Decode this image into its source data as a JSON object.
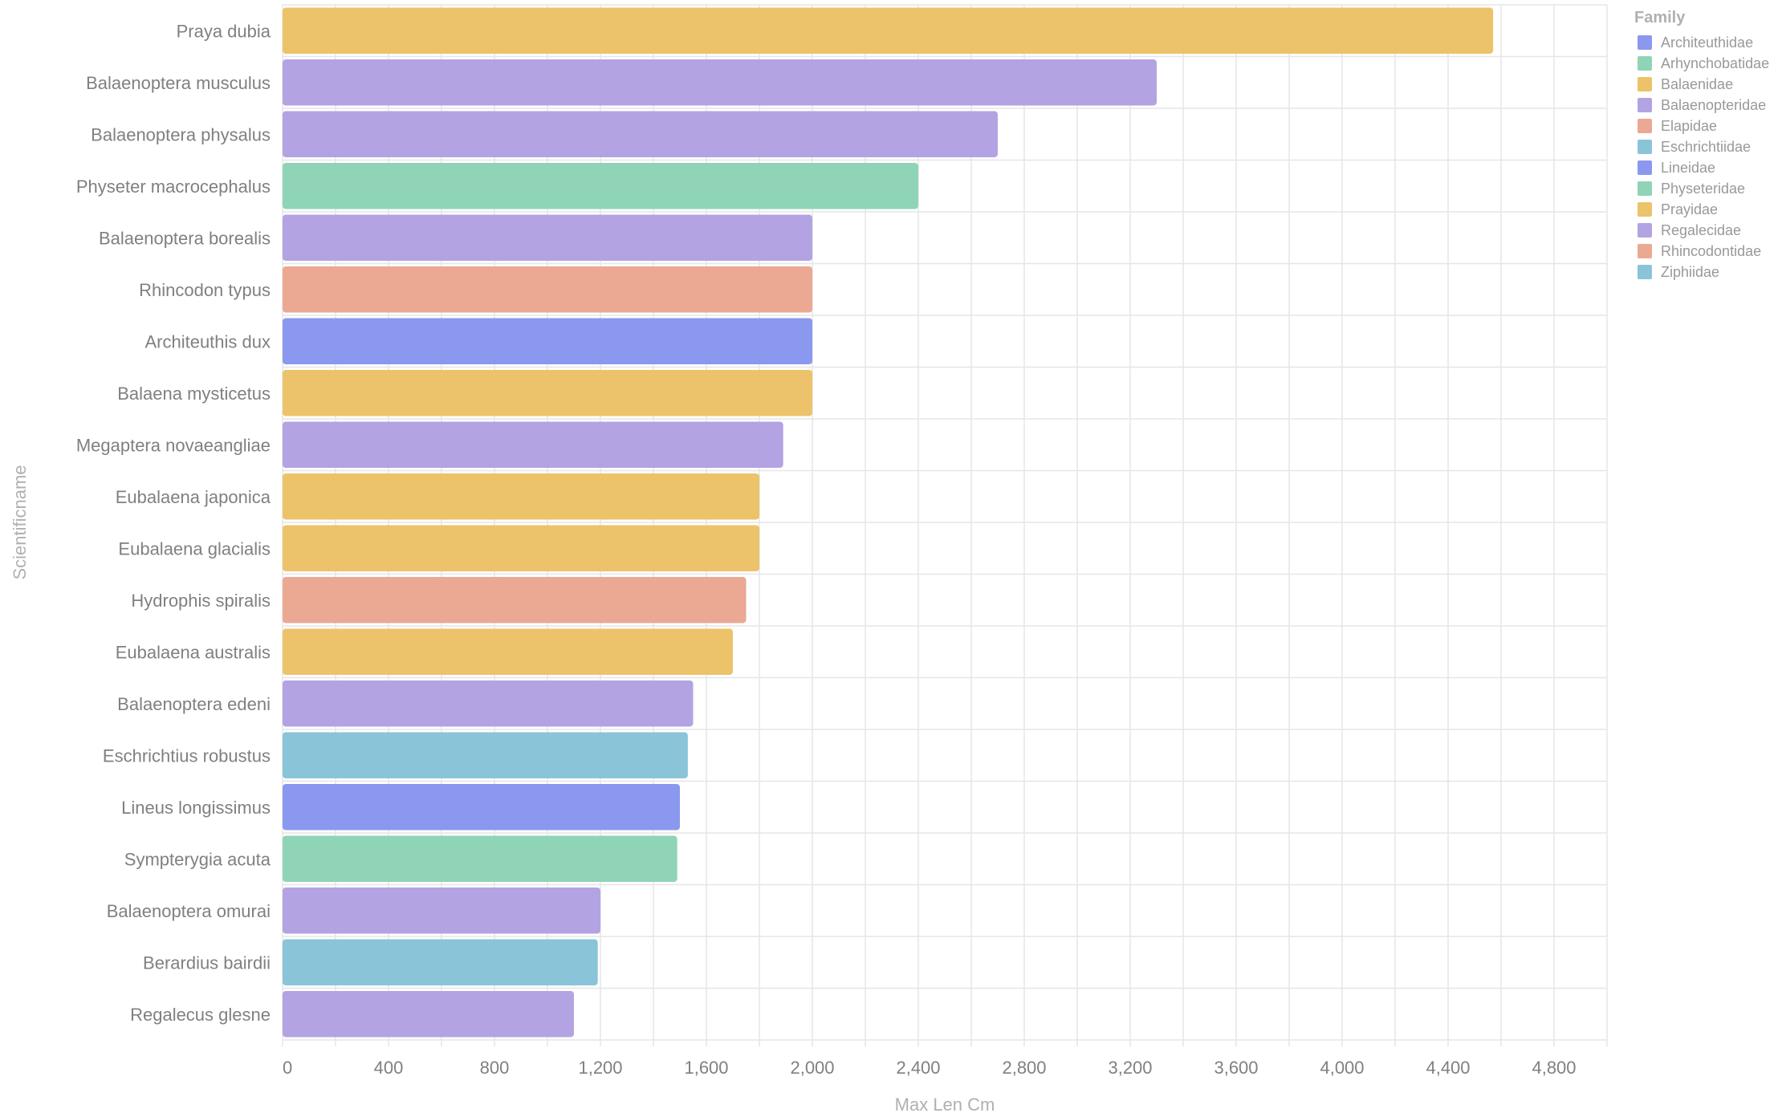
{
  "chart_data": {
    "type": "bar",
    "orientation": "horizontal",
    "xlabel": "Max Len Cm",
    "ylabel": "Scientificname",
    "xlim": [
      0,
      5000
    ],
    "xticks": [
      0,
      400,
      800,
      1200,
      1600,
      2000,
      2400,
      2800,
      3200,
      3600,
      4000,
      4400,
      4800
    ],
    "grid": true,
    "legend": {
      "title": "Family",
      "placement": "right",
      "entries": [
        {
          "name": "Architeuthidae",
          "color": "#8b98ef"
        },
        {
          "name": "Arhynchobatidae",
          "color": "#8fd4b6"
        },
        {
          "name": "Balaenidae",
          "color": "#ecc36a"
        },
        {
          "name": "Balaenopteridae",
          "color": "#b3a3e3"
        },
        {
          "name": "Elapidae",
          "color": "#eba893"
        },
        {
          "name": "Eschrichtiidae",
          "color": "#8ac4d9"
        },
        {
          "name": "Lineidae",
          "color": "#8b98ef"
        },
        {
          "name": "Physeteridae",
          "color": "#8fd4b6"
        },
        {
          "name": "Prayidae",
          "color": "#ecc36a"
        },
        {
          "name": "Regalecidae",
          "color": "#b3a3e3"
        },
        {
          "name": "Rhincodontidae",
          "color": "#eba893"
        },
        {
          "name": "Ziphiidae",
          "color": "#8ac4d9"
        }
      ]
    },
    "bars": [
      {
        "name": "Praya dubia",
        "value": 4570,
        "family": "Prayidae"
      },
      {
        "name": "Balaenoptera musculus",
        "value": 3300,
        "family": "Balaenopteridae"
      },
      {
        "name": "Balaenoptera physalus",
        "value": 2700,
        "family": "Balaenopteridae"
      },
      {
        "name": "Physeter macrocephalus",
        "value": 2400,
        "family": "Physeteridae"
      },
      {
        "name": "Balaenoptera borealis",
        "value": 2000,
        "family": "Balaenopteridae"
      },
      {
        "name": "Rhincodon typus",
        "value": 2000,
        "family": "Rhincodontidae"
      },
      {
        "name": "Architeuthis dux",
        "value": 2000,
        "family": "Architeuthidae"
      },
      {
        "name": "Balaena mysticetus",
        "value": 2000,
        "family": "Balaenidae"
      },
      {
        "name": "Megaptera novaeangliae",
        "value": 1890,
        "family": "Balaenopteridae"
      },
      {
        "name": "Eubalaena japonica",
        "value": 1800,
        "family": "Balaenidae"
      },
      {
        "name": "Eubalaena glacialis",
        "value": 1800,
        "family": "Balaenidae"
      },
      {
        "name": "Hydrophis spiralis",
        "value": 1750,
        "family": "Elapidae"
      },
      {
        "name": "Eubalaena australis",
        "value": 1700,
        "family": "Balaenidae"
      },
      {
        "name": "Balaenoptera edeni",
        "value": 1550,
        "family": "Balaenopteridae"
      },
      {
        "name": "Eschrichtius robustus",
        "value": 1530,
        "family": "Eschrichtiidae"
      },
      {
        "name": "Lineus longissimus",
        "value": 1500,
        "family": "Lineidae"
      },
      {
        "name": "Sympterygia acuta",
        "value": 1490,
        "family": "Arhynchobatidae"
      },
      {
        "name": "Balaenoptera omurai",
        "value": 1200,
        "family": "Balaenopteridae"
      },
      {
        "name": "Berardius bairdii",
        "value": 1190,
        "family": "Ziphiidae"
      },
      {
        "name": "Regalecus glesne",
        "value": 1100,
        "family": "Regalecidae"
      }
    ]
  }
}
